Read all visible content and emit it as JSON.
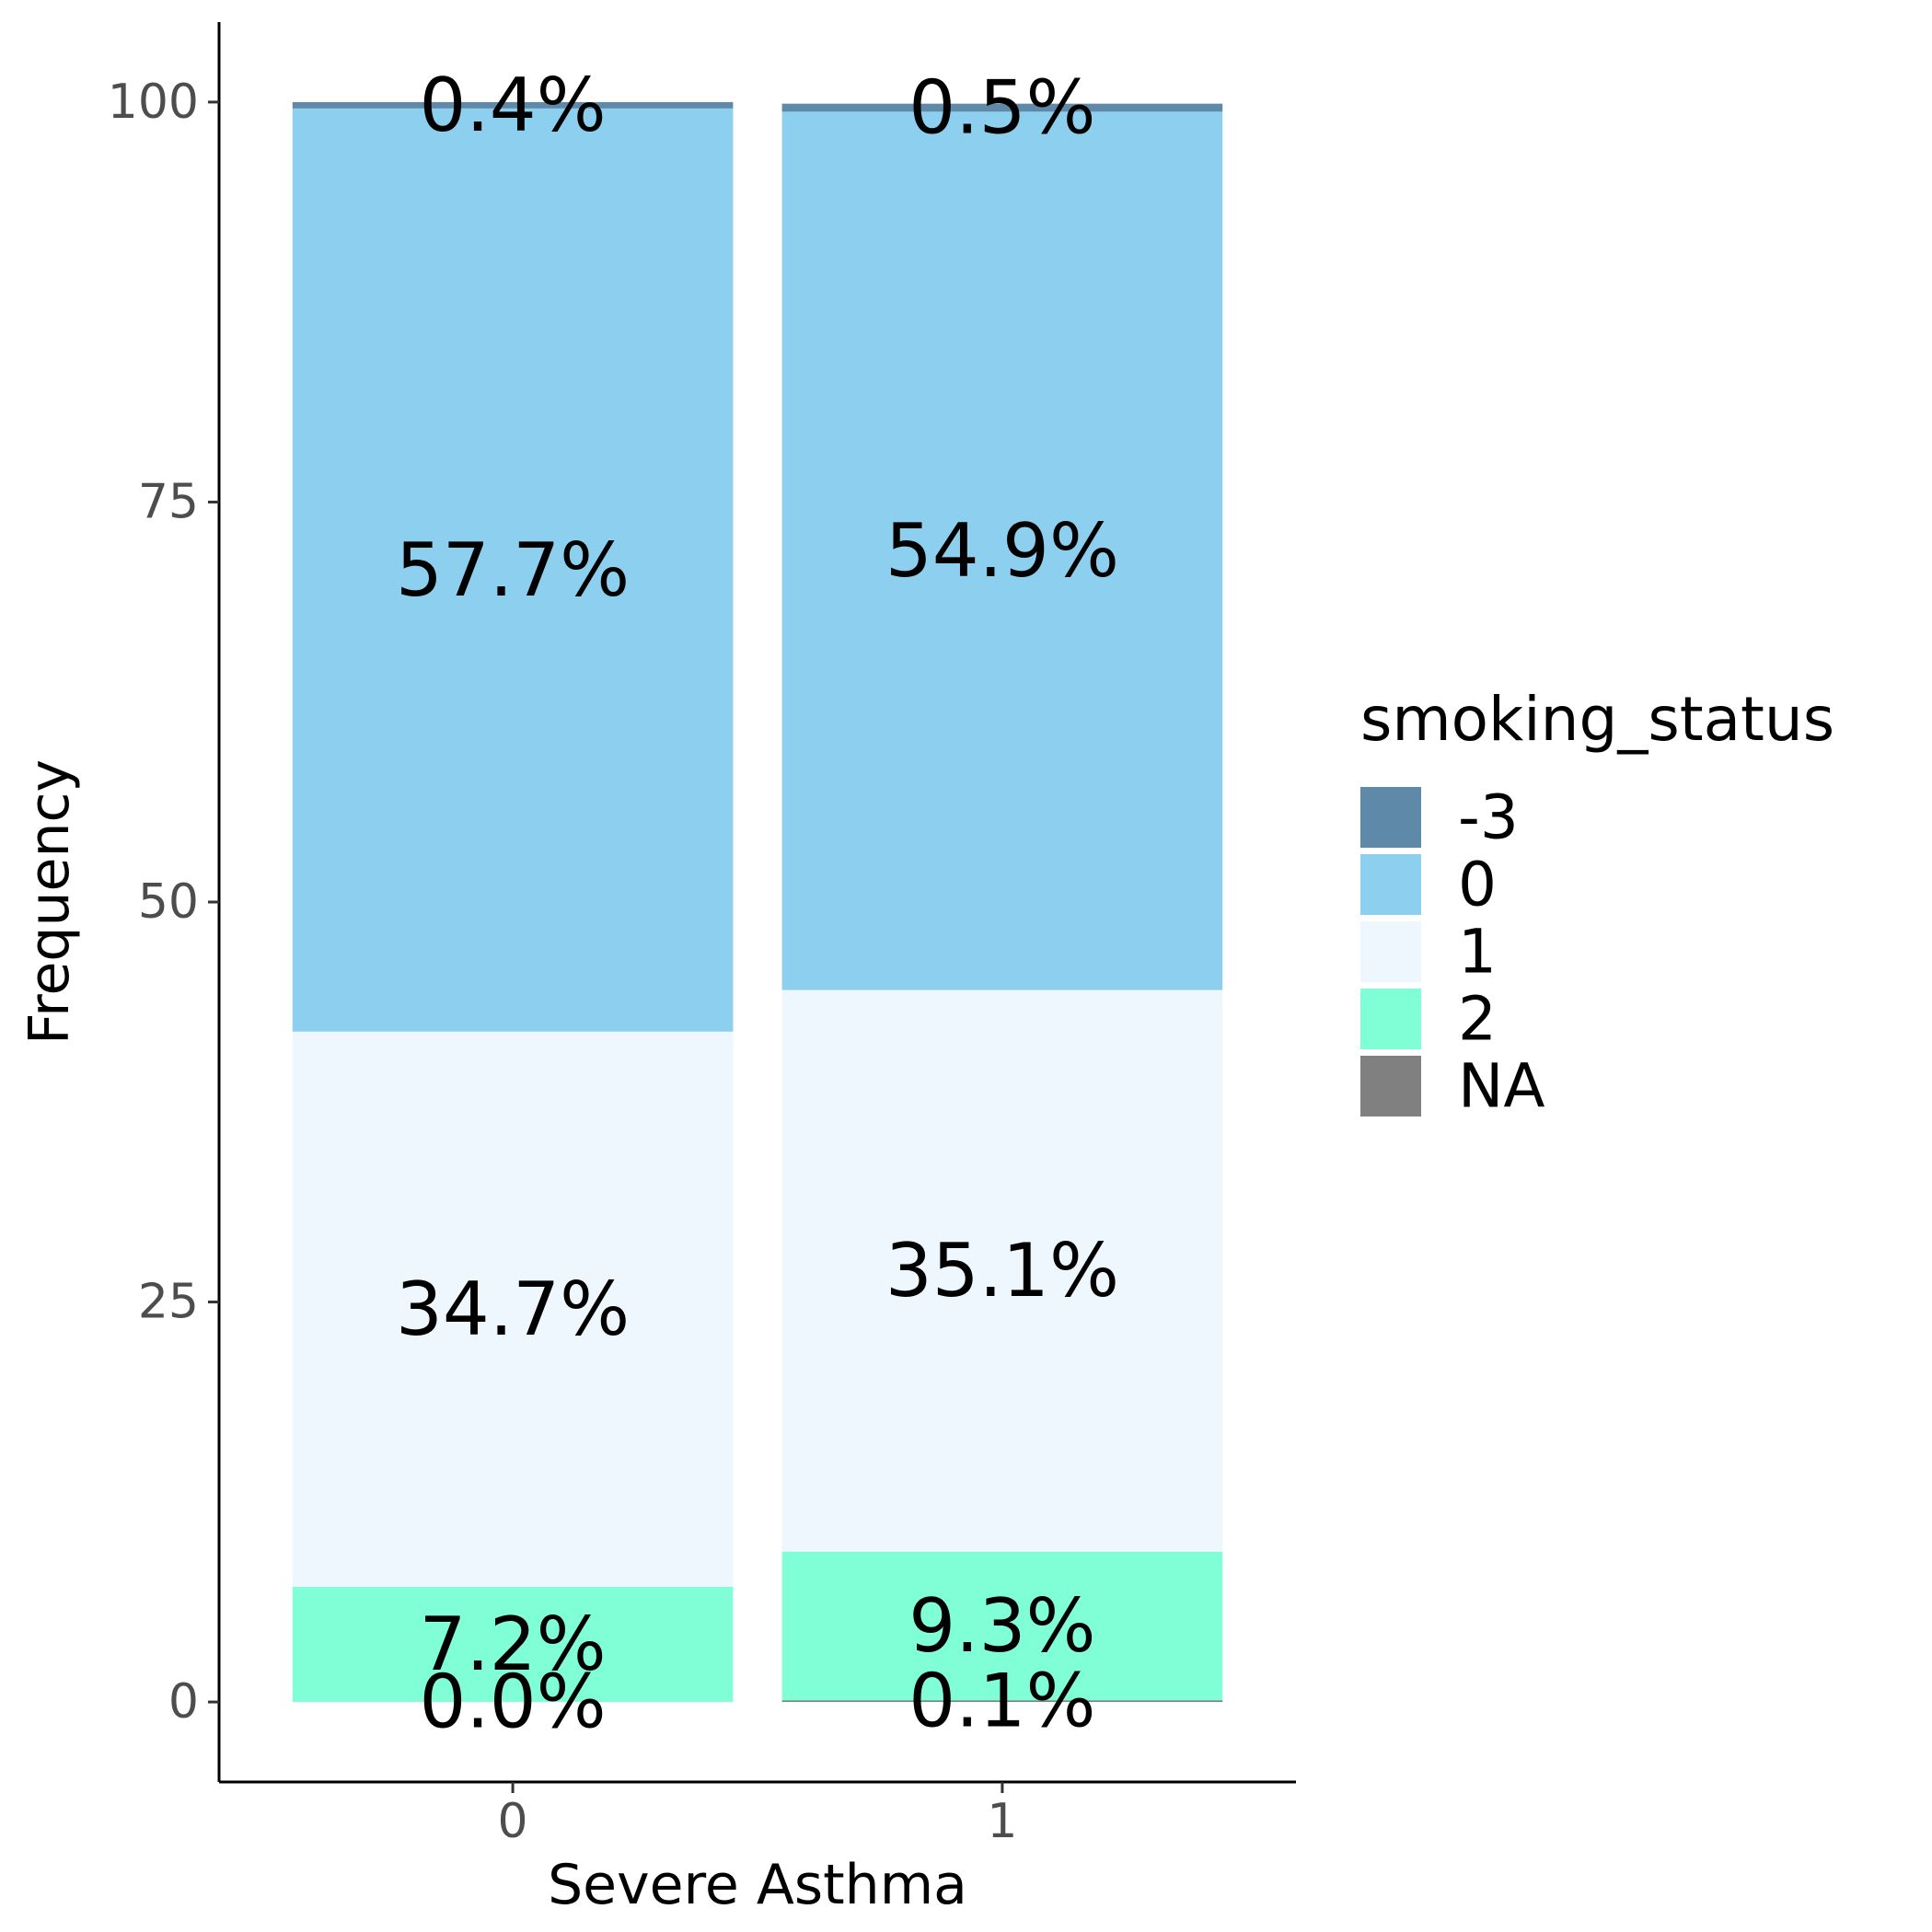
{
  "chart_data": {
    "type": "bar",
    "stacked": true,
    "xlabel": "Severe Asthma",
    "ylabel": "Frequency",
    "categories": [
      "0",
      "1"
    ],
    "yticks": [
      0,
      25,
      50,
      75,
      100
    ],
    "ylim": [
      -5,
      105
    ],
    "grid": false,
    "legend": {
      "title": "smoking_status",
      "position": "right",
      "entries": [
        {
          "label": "-3",
          "color": "#5f89a8"
        },
        {
          "label": "0",
          "color": "#8ccfee"
        },
        {
          "label": "1",
          "color": "#eef6fe"
        },
        {
          "label": "2",
          "color": "#80fed5"
        },
        {
          "label": "NA",
          "color": "#808080"
        }
      ]
    },
    "series": [
      {
        "name": "NA",
        "color": "#808080",
        "values": [
          0.0,
          0.1
        ],
        "labels": [
          "0.0%",
          "0.1%"
        ]
      },
      {
        "name": "2",
        "color": "#80fed5",
        "values": [
          7.2,
          9.3
        ],
        "labels": [
          "7.2%",
          "9.3%"
        ]
      },
      {
        "name": "1",
        "color": "#eef6fe",
        "values": [
          34.7,
          35.1
        ],
        "labels": [
          "34.7%",
          "35.1%"
        ]
      },
      {
        "name": "0",
        "color": "#8ccfee",
        "values": [
          57.7,
          54.9
        ],
        "labels": [
          "57.7%",
          "54.9%"
        ]
      },
      {
        "name": "-3",
        "color": "#5f89a8",
        "values": [
          0.4,
          0.5
        ],
        "labels": [
          "0.4%",
          "0.5%"
        ]
      }
    ]
  }
}
